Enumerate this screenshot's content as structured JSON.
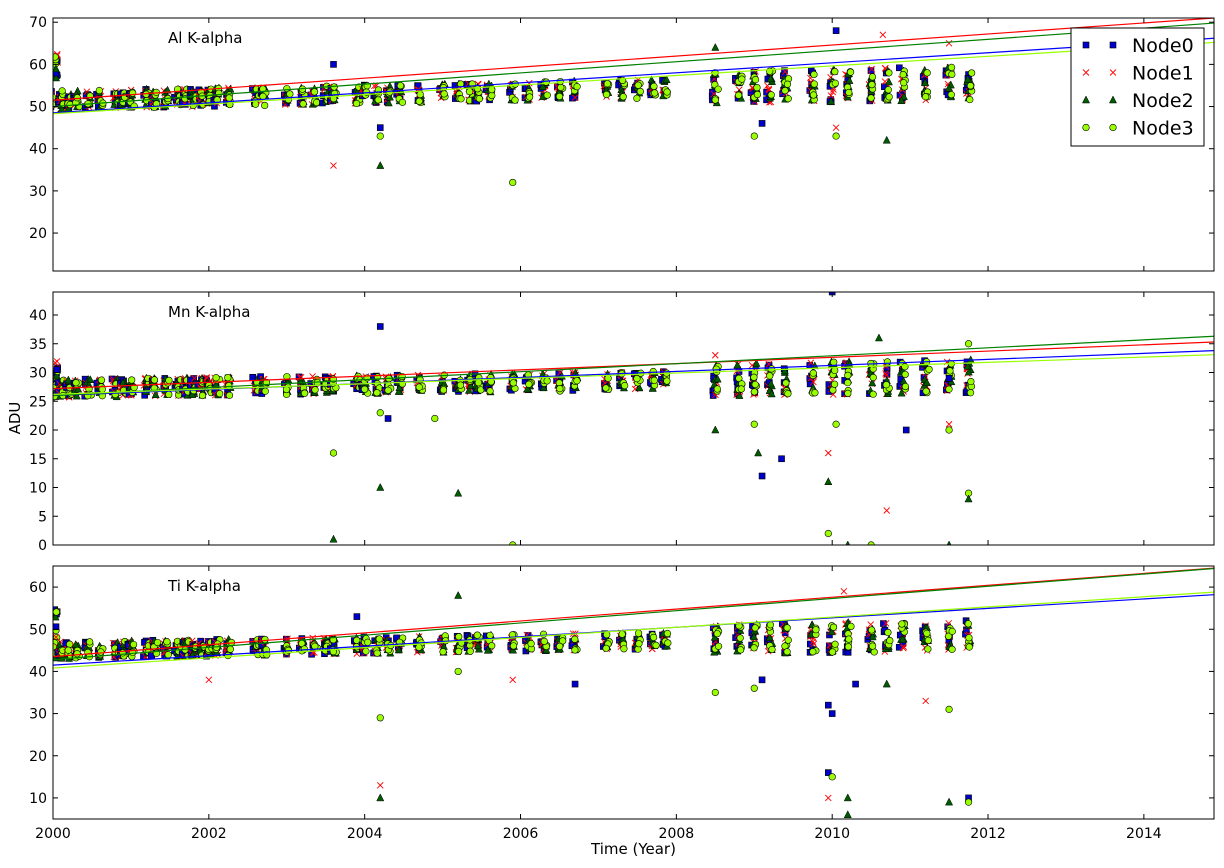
{
  "chart_data": {
    "type": "scatter",
    "xlabel": "Time (Year)",
    "ylabel": "ADU",
    "xlim": [
      2000,
      2014.9
    ],
    "x_ticks": [
      2000,
      2002,
      2004,
      2006,
      2008,
      2010,
      2012,
      2014
    ],
    "x_tick_labels": [
      "2000",
      "2002",
      "2004",
      "2006",
      "2008",
      "2010",
      "2012",
      "2014"
    ],
    "legend": {
      "placement": "top-right",
      "entries": [
        "Node0",
        "Node1",
        "Node2",
        "Node3"
      ]
    },
    "series_styles": [
      {
        "name": "Node0",
        "marker": "square",
        "color": "#0000cc",
        "line_color": "#0000ff"
      },
      {
        "name": "Node1",
        "marker": "x",
        "color": "#ff0000",
        "line_color": "#ff0000"
      },
      {
        "name": "Node2",
        "marker": "triangle",
        "color": "#005a00",
        "line_color": "#008000"
      },
      {
        "name": "Node3",
        "marker": "circle",
        "color": "#99ff00",
        "line_color": "#99ff00"
      }
    ],
    "observation_years": [
      2000.0,
      2000.1,
      2000.2,
      2000.3,
      2000.45,
      2000.6,
      2000.8,
      2000.9,
      2001.0,
      2001.2,
      2001.3,
      2001.45,
      2001.6,
      2001.7,
      2001.8,
      2001.9,
      2002.0,
      2002.1,
      2002.25,
      2002.6,
      2002.7,
      2003.0,
      2003.2,
      2003.35,
      2003.5,
      2003.6,
      2003.9,
      2004.0,
      2004.15,
      2004.3,
      2004.45,
      2004.7,
      2005.0,
      2005.2,
      2005.35,
      2005.45,
      2005.6,
      2005.9,
      2006.1,
      2006.3,
      2006.5,
      2006.7,
      2007.1,
      2007.3,
      2007.5,
      2007.7,
      2007.85,
      2008.5,
      2008.8,
      2009.0,
      2009.2,
      2009.4,
      2009.75,
      2010.0,
      2010.2,
      2010.5,
      2010.7,
      2010.9,
      2011.2,
      2011.5,
      2011.75
    ],
    "panels": [
      {
        "title": "Al K-alpha",
        "ylim": [
          11,
          71
        ],
        "y_ticks": [
          20,
          30,
          40,
          50,
          60,
          70
        ],
        "y_tick_labels": [
          "20",
          "30",
          "40",
          "50",
          "60",
          "70"
        ],
        "fit_lines": [
          {
            "series": "Node0",
            "y_start": 48.5,
            "y_end": 66.2
          },
          {
            "series": "Node1",
            "y_start": 51.5,
            "y_end": 71.0
          },
          {
            "series": "Node2",
            "y_start": 50.0,
            "y_end": 69.8
          },
          {
            "series": "Node3",
            "y_start": 48.3,
            "y_end": 65.2
          }
        ],
        "cluster_center": {
          "start": 51.5,
          "slope_per_year": 0.35,
          "spread": 2.2
        },
        "initial_cluster": [
          56,
          63
        ],
        "outliers": [
          {
            "series": "Node0",
            "x": 2003.6,
            "y": 60
          },
          {
            "series": "Node1",
            "x": 2003.6,
            "y": 36
          },
          {
            "series": "Node2",
            "x": 2004.2,
            "y": 36
          },
          {
            "series": "Node0",
            "x": 2004.2,
            "y": 45
          },
          {
            "series": "Node3",
            "x": 2004.2,
            "y": 43
          },
          {
            "series": "Node3",
            "x": 2005.9,
            "y": 32
          },
          {
            "series": "Node2",
            "x": 2008.5,
            "y": 64
          },
          {
            "series": "Node0",
            "x": 2010.05,
            "y": 68
          },
          {
            "series": "Node1",
            "x": 2010.05,
            "y": 45
          },
          {
            "series": "Node3",
            "x": 2010.05,
            "y": 43
          },
          {
            "series": "Node1",
            "x": 2010.65,
            "y": 67
          },
          {
            "series": "Node2",
            "x": 2010.7,
            "y": 42
          },
          {
            "series": "Node0",
            "x": 2009.1,
            "y": 46
          },
          {
            "series": "Node3",
            "x": 2009.0,
            "y": 43
          },
          {
            "series": "Node1",
            "x": 2011.5,
            "y": 65
          }
        ]
      },
      {
        "title": "Mn K-alpha",
        "ylim": [
          0,
          44
        ],
        "y_ticks": [
          0,
          5,
          10,
          15,
          20,
          25,
          30,
          35,
          40
        ],
        "y_tick_labels": [
          "0",
          "5",
          "10",
          "15",
          "20",
          "25",
          "30",
          "35",
          "40"
        ],
        "fit_lines": [
          {
            "series": "Node0",
            "y_start": 26.0,
            "y_end": 33.8
          },
          {
            "series": "Node1",
            "y_start": 27.2,
            "y_end": 35.3
          },
          {
            "series": "Node2",
            "y_start": 26.0,
            "y_end": 36.3
          },
          {
            "series": "Node3",
            "y_start": 26.2,
            "y_end": 33.1
          }
        ],
        "cluster_center": {
          "start": 27.2,
          "slope_per_year": 0.18,
          "spread": 1.6
        },
        "initial_cluster": [
          27,
          32
        ],
        "outliers": [
          {
            "series": "Node3",
            "x": 2003.6,
            "y": 16
          },
          {
            "series": "Node2",
            "x": 2003.6,
            "y": 1
          },
          {
            "series": "Node0",
            "x": 2004.2,
            "y": 38
          },
          {
            "series": "Node0",
            "x": 2004.3,
            "y": 22
          },
          {
            "series": "Node2",
            "x": 2004.2,
            "y": 10
          },
          {
            "series": "Node3",
            "x": 2004.2,
            "y": 23
          },
          {
            "series": "Node3",
            "x": 2004.9,
            "y": 22
          },
          {
            "series": "Node2",
            "x": 2005.2,
            "y": 9
          },
          {
            "series": "Node3",
            "x": 2005.9,
            "y": 0
          },
          {
            "series": "Node1",
            "x": 2008.5,
            "y": 33
          },
          {
            "series": "Node2",
            "x": 2008.5,
            "y": 20
          },
          {
            "series": "Node2",
            "x": 2009.05,
            "y": 16
          },
          {
            "series": "Node0",
            "x": 2009.1,
            "y": 12
          },
          {
            "series": "Node0",
            "x": 2009.35,
            "y": 15
          },
          {
            "series": "Node3",
            "x": 2009.0,
            "y": 21
          },
          {
            "series": "Node2",
            "x": 2009.95,
            "y": 11
          },
          {
            "series": "Node1",
            "x": 2009.95,
            "y": 16
          },
          {
            "series": "Node3",
            "x": 2009.95,
            "y": 2
          },
          {
            "series": "Node0",
            "x": 2010.0,
            "y": 44
          },
          {
            "series": "Node3",
            "x": 2010.05,
            "y": 21
          },
          {
            "series": "Node2",
            "x": 2010.2,
            "y": 0
          },
          {
            "series": "Node3",
            "x": 2010.5,
            "y": 0
          },
          {
            "series": "Node1",
            "x": 2010.7,
            "y": 6
          },
          {
            "series": "Node2",
            "x": 2010.6,
            "y": 36
          },
          {
            "series": "Node0",
            "x": 2010.95,
            "y": 20
          },
          {
            "series": "Node1",
            "x": 2011.5,
            "y": 21
          },
          {
            "series": "Node3",
            "x": 2011.5,
            "y": 20
          },
          {
            "series": "Node0",
            "x": 2011.5,
            "y": 29
          },
          {
            "series": "Node2",
            "x": 2011.5,
            "y": 0
          },
          {
            "series": "Node3",
            "x": 2011.75,
            "y": 9
          },
          {
            "series": "Node2",
            "x": 2011.75,
            "y": 8
          },
          {
            "series": "Node3",
            "x": 2011.75,
            "y": 35
          }
        ]
      },
      {
        "title": "Ti K-alpha",
        "ylim": [
          5,
          65
        ],
        "y_ticks": [
          10,
          20,
          30,
          40,
          50,
          60
        ],
        "y_tick_labels": [
          "10",
          "20",
          "30",
          "40",
          "50",
          "60"
        ],
        "fit_lines": [
          {
            "series": "Node0",
            "y_start": 41.5,
            "y_end": 58.2
          },
          {
            "series": "Node1",
            "y_start": 43.5,
            "y_end": 64.5
          },
          {
            "series": "Node2",
            "y_start": 42.8,
            "y_end": 64.4
          },
          {
            "series": "Node3",
            "y_start": 40.8,
            "y_end": 58.8
          }
        ],
        "cluster_center": {
          "start": 45.0,
          "slope_per_year": 0.3,
          "spread": 2.0
        },
        "initial_cluster": [
          48,
          55
        ],
        "outliers": [
          {
            "series": "Node1",
            "x": 2002.0,
            "y": 38
          },
          {
            "series": "Node0",
            "x": 2003.9,
            "y": 53
          },
          {
            "series": "Node3",
            "x": 2004.2,
            "y": 29
          },
          {
            "series": "Node1",
            "x": 2004.2,
            "y": 13
          },
          {
            "series": "Node2",
            "x": 2004.2,
            "y": 10
          },
          {
            "series": "Node2",
            "x": 2005.2,
            "y": 58
          },
          {
            "series": "Node3",
            "x": 2005.2,
            "y": 40
          },
          {
            "series": "Node1",
            "x": 2005.9,
            "y": 38
          },
          {
            "series": "Node0",
            "x": 2006.7,
            "y": 37
          },
          {
            "series": "Node3",
            "x": 2008.5,
            "y": 35
          },
          {
            "series": "Node3",
            "x": 2009.0,
            "y": 36
          },
          {
            "series": "Node0",
            "x": 2009.1,
            "y": 38
          },
          {
            "series": "Node0",
            "x": 2009.95,
            "y": 16
          },
          {
            "series": "Node3",
            "x": 2010.0,
            "y": 15
          },
          {
            "series": "Node0",
            "x": 2010.0,
            "y": 30
          },
          {
            "series": "Node0",
            "x": 2009.95,
            "y": 32
          },
          {
            "series": "Node1",
            "x": 2009.95,
            "y": 10
          },
          {
            "series": "Node2",
            "x": 2010.2,
            "y": 10
          },
          {
            "series": "Node2",
            "x": 2010.2,
            "y": 6
          },
          {
            "series": "Node0",
            "x": 2010.3,
            "y": 37
          },
          {
            "series": "Node2",
            "x": 2010.7,
            "y": 37
          },
          {
            "series": "Node1",
            "x": 2011.2,
            "y": 33
          },
          {
            "series": "Node3",
            "x": 2011.5,
            "y": 31
          },
          {
            "series": "Node2",
            "x": 2011.5,
            "y": 9
          },
          {
            "series": "Node0",
            "x": 2011.75,
            "y": 10
          },
          {
            "series": "Node3",
            "x": 2011.75,
            "y": 9
          },
          {
            "series": "Node1",
            "x": 2010.15,
            "y": 59
          }
        ]
      }
    ]
  }
}
